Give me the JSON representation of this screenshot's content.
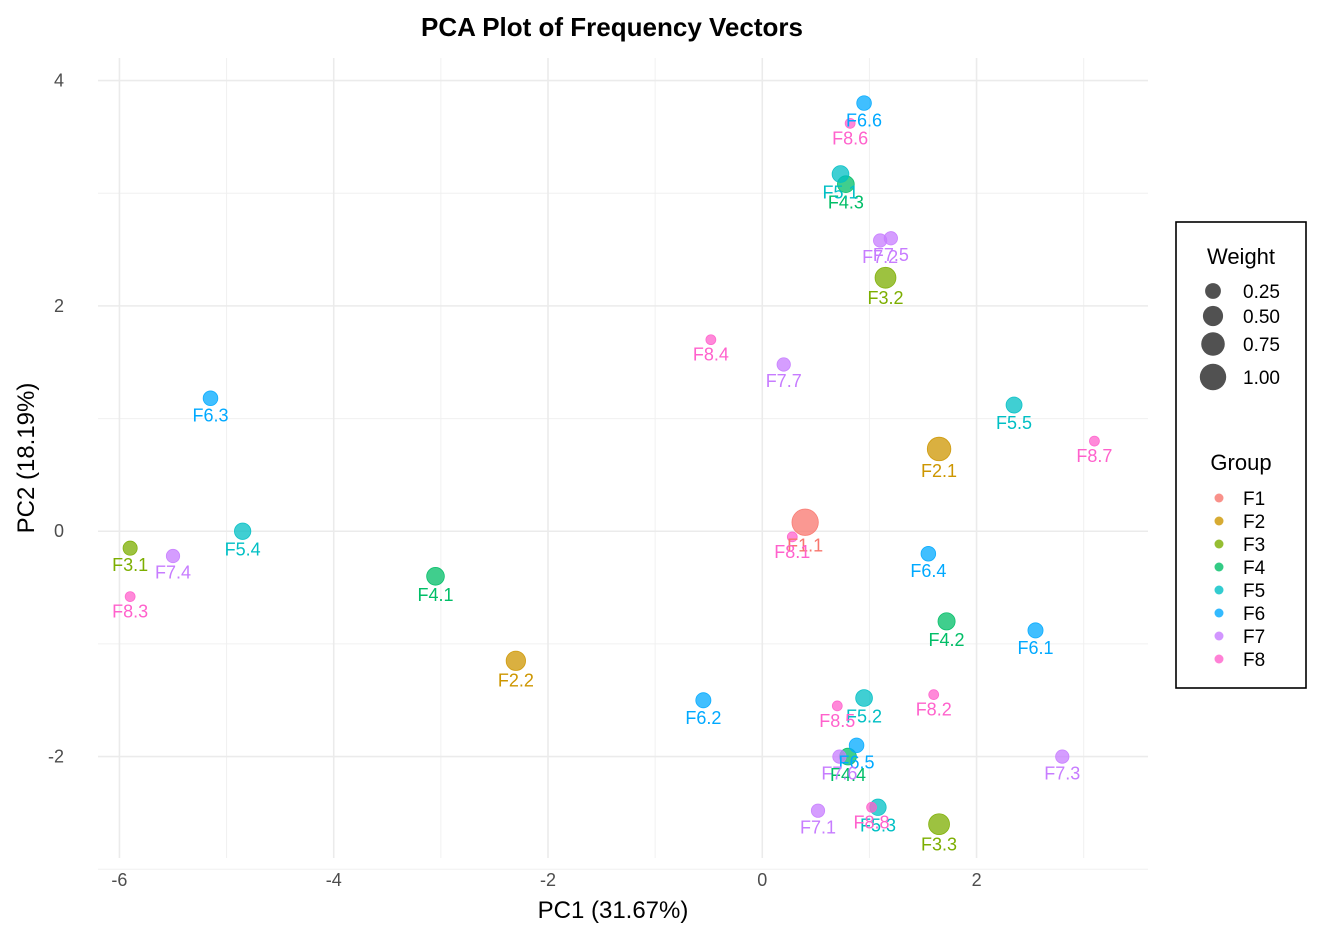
{
  "chart_data": {
    "type": "scatter",
    "title": "PCA Plot of Frequency Vectors",
    "xlabel": "PC1 (31.67%)",
    "ylabel": "PC2 (18.19%)",
    "xlim": [
      -6.2,
      3.6
    ],
    "ylim": [
      -2.9,
      4.2
    ],
    "xticks": [
      -6,
      -4,
      -2,
      0,
      2
    ],
    "yticks": [
      -2,
      0,
      2,
      4
    ],
    "grid": true,
    "size_legend": {
      "title": "Weight",
      "entries": [
        {
          "label": "0.25",
          "value": 0.25
        },
        {
          "label": "0.50",
          "value": 0.5
        },
        {
          "label": "0.75",
          "value": 0.75
        },
        {
          "label": "1.00",
          "value": 1.0
        }
      ]
    },
    "color_legend": {
      "title": "Group",
      "entries": [
        {
          "label": "F1",
          "color": "#F8766D"
        },
        {
          "label": "F2",
          "color": "#CD9600"
        },
        {
          "label": "F3",
          "color": "#7CAE00"
        },
        {
          "label": "F4",
          "color": "#00BE67"
        },
        {
          "label": "F5",
          "color": "#00BFC4"
        },
        {
          "label": "F6",
          "color": "#00A9FF"
        },
        {
          "label": "F7",
          "color": "#C77CFF"
        },
        {
          "label": "F8",
          "color": "#FF61CC"
        }
      ]
    },
    "legend_position": "right",
    "points": [
      {
        "label": "F1.1",
        "group": "F1",
        "x": 0.4,
        "y": 0.08,
        "weight": 1.0
      },
      {
        "label": "F2.1",
        "group": "F2",
        "x": 1.65,
        "y": 0.73,
        "weight": 0.75
      },
      {
        "label": "F2.2",
        "group": "F2",
        "x": -2.3,
        "y": -1.15,
        "weight": 0.45
      },
      {
        "label": "F3.1",
        "group": "F3",
        "x": -5.9,
        "y": -0.15,
        "weight": 0.18
      },
      {
        "label": "F3.2",
        "group": "F3",
        "x": 1.15,
        "y": 2.25,
        "weight": 0.55
      },
      {
        "label": "F3.3",
        "group": "F3",
        "x": 1.65,
        "y": -2.6,
        "weight": 0.55
      },
      {
        "label": "F4.1",
        "group": "F4",
        "x": -3.05,
        "y": -0.4,
        "weight": 0.35
      },
      {
        "label": "F4.2",
        "group": "F4",
        "x": 1.72,
        "y": -0.8,
        "weight": 0.32
      },
      {
        "label": "F4.3",
        "group": "F4",
        "x": 0.78,
        "y": 3.08,
        "weight": 0.3
      },
      {
        "label": "F4.4",
        "group": "F4",
        "x": 0.8,
        "y": -2.0,
        "weight": 0.3
      },
      {
        "label": "F5.1",
        "group": "F5",
        "x": 0.73,
        "y": 3.17,
        "weight": 0.3
      },
      {
        "label": "F5.2",
        "group": "F5",
        "x": 0.95,
        "y": -1.48,
        "weight": 0.3
      },
      {
        "label": "F5.3",
        "group": "F5",
        "x": 1.08,
        "y": -2.45,
        "weight": 0.28
      },
      {
        "label": "F5.4",
        "group": "F5",
        "x": -4.85,
        "y": 0.0,
        "weight": 0.28
      },
      {
        "label": "F5.5",
        "group": "F5",
        "x": 2.35,
        "y": 1.12,
        "weight": 0.26
      },
      {
        "label": "F6.1",
        "group": "F6",
        "x": 2.55,
        "y": -0.88,
        "weight": 0.22
      },
      {
        "label": "F6.2",
        "group": "F6",
        "x": -0.55,
        "y": -1.5,
        "weight": 0.22
      },
      {
        "label": "F6.3",
        "group": "F6",
        "x": -5.15,
        "y": 1.18,
        "weight": 0.2
      },
      {
        "label": "F6.4",
        "group": "F6",
        "x": 1.55,
        "y": -0.2,
        "weight": 0.2
      },
      {
        "label": "F6.5",
        "group": "F6",
        "x": 0.88,
        "y": -1.9,
        "weight": 0.2
      },
      {
        "label": "F6.6",
        "group": "F6",
        "x": 0.95,
        "y": 3.8,
        "weight": 0.2
      },
      {
        "label": "F7.1",
        "group": "F7",
        "x": 0.52,
        "y": -2.48,
        "weight": 0.15
      },
      {
        "label": "F7.2",
        "group": "F7",
        "x": 1.1,
        "y": 2.58,
        "weight": 0.15
      },
      {
        "label": "F7.3",
        "group": "F7",
        "x": 2.8,
        "y": -2.0,
        "weight": 0.15
      },
      {
        "label": "F7.4",
        "group": "F7",
        "x": -5.5,
        "y": -0.22,
        "weight": 0.15
      },
      {
        "label": "F7.5",
        "group": "F7",
        "x": 1.2,
        "y": 2.6,
        "weight": 0.15
      },
      {
        "label": "F7.6",
        "group": "F7",
        "x": 0.72,
        "y": -2.0,
        "weight": 0.15
      },
      {
        "label": "F7.7",
        "group": "F7",
        "x": 0.2,
        "y": 1.48,
        "weight": 0.15
      },
      {
        "label": "F8.1",
        "group": "F8",
        "x": 0.28,
        "y": -0.05,
        "weight": 0.05
      },
      {
        "label": "F8.2",
        "group": "F8",
        "x": 1.6,
        "y": -1.45,
        "weight": 0.05
      },
      {
        "label": "F8.3",
        "group": "F8",
        "x": -5.9,
        "y": -0.58,
        "weight": 0.05
      },
      {
        "label": "F8.4",
        "group": "F8",
        "x": -0.48,
        "y": 1.7,
        "weight": 0.05
      },
      {
        "label": "F8.5",
        "group": "F8",
        "x": 0.7,
        "y": -1.55,
        "weight": 0.05
      },
      {
        "label": "F8.6",
        "group": "F8",
        "x": 0.82,
        "y": 3.62,
        "weight": 0.05
      },
      {
        "label": "F8.7",
        "group": "F8",
        "x": 3.1,
        "y": 0.8,
        "weight": 0.05
      },
      {
        "label": "F8.8",
        "group": "F8",
        "x": 1.02,
        "y": -2.45,
        "weight": 0.05
      }
    ]
  }
}
